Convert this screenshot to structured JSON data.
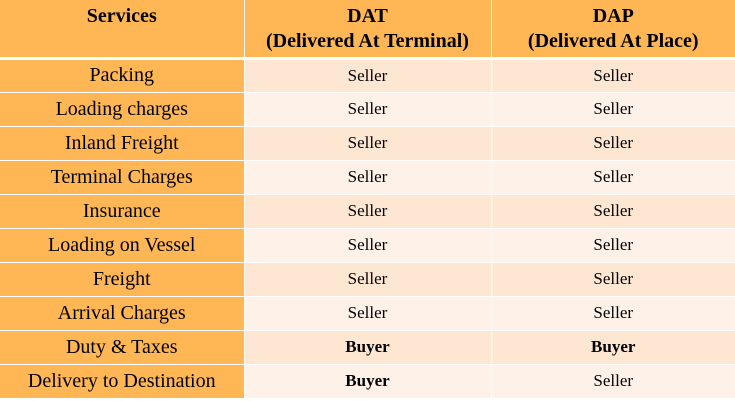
{
  "headers": [
    {
      "line1": "Services",
      "line2": ""
    },
    {
      "line1": "DAT",
      "line2": "(Delivered At Terminal)"
    },
    {
      "line1": "DAP",
      "line2": "(Delivered At Place)"
    }
  ],
  "rows": [
    {
      "service": "Packing",
      "dat": "Seller",
      "dap": "Seller"
    },
    {
      "service": "Loading charges",
      "dat": "Seller",
      "dap": "Seller"
    },
    {
      "service": "Inland Freight",
      "dat": "Seller",
      "dap": "Seller"
    },
    {
      "service": "Terminal Charges",
      "dat": "Seller",
      "dap": "Seller"
    },
    {
      "service": "Insurance",
      "dat": "Seller",
      "dap": "Seller"
    },
    {
      "service": "Loading on Vessel",
      "dat": "Seller",
      "dap": "Seller"
    },
    {
      "service": "Freight",
      "dat": "Seller",
      "dap": "Seller"
    },
    {
      "service": "Arrival Charges",
      "dat": "Seller",
      "dap": "Seller"
    },
    {
      "service": "Duty & Taxes",
      "dat": "Buyer",
      "dap": "Buyer"
    },
    {
      "service": "Delivery to Destination",
      "dat": "Buyer",
      "dap": "Seller"
    }
  ],
  "colors": {
    "header": "#FFB755",
    "row_a": "#FDE6D2",
    "row_b": "#FDF1E8"
  }
}
